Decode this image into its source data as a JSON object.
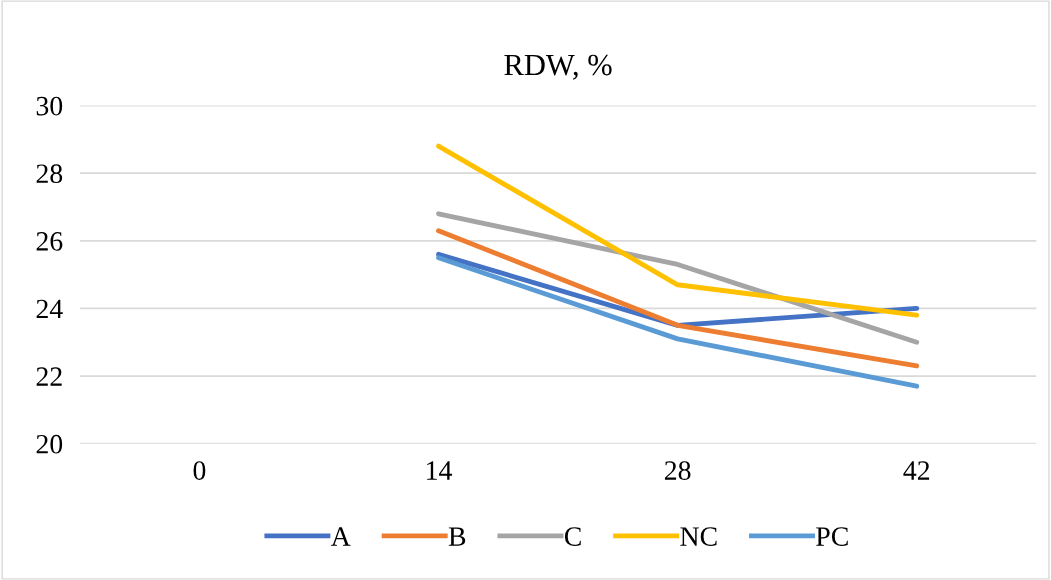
{
  "chart_data": {
    "type": "line",
    "title": "RDW, %",
    "categories": [
      "0",
      "14",
      "28",
      "42"
    ],
    "series": [
      {
        "name": "A",
        "color": "#4472c4",
        "values": [
          null,
          25.6,
          23.5,
          24.0
        ]
      },
      {
        "name": "B",
        "color": "#ed7d31",
        "values": [
          null,
          26.3,
          23.5,
          22.3
        ]
      },
      {
        "name": "C",
        "color": "#a5a5a5",
        "values": [
          null,
          26.8,
          25.3,
          23.0
        ]
      },
      {
        "name": "NC",
        "color": "#ffc000",
        "values": [
          null,
          28.8,
          24.7,
          23.8
        ]
      },
      {
        "name": "PC",
        "color": "#5b9bd5",
        "values": [
          null,
          25.5,
          23.1,
          21.7
        ]
      }
    ],
    "ylim": [
      20,
      30
    ],
    "yticks": [
      20,
      22,
      24,
      26,
      28,
      30
    ],
    "grid": "y",
    "legend": "bottom",
    "marker": "none",
    "line_style": "solid"
  }
}
